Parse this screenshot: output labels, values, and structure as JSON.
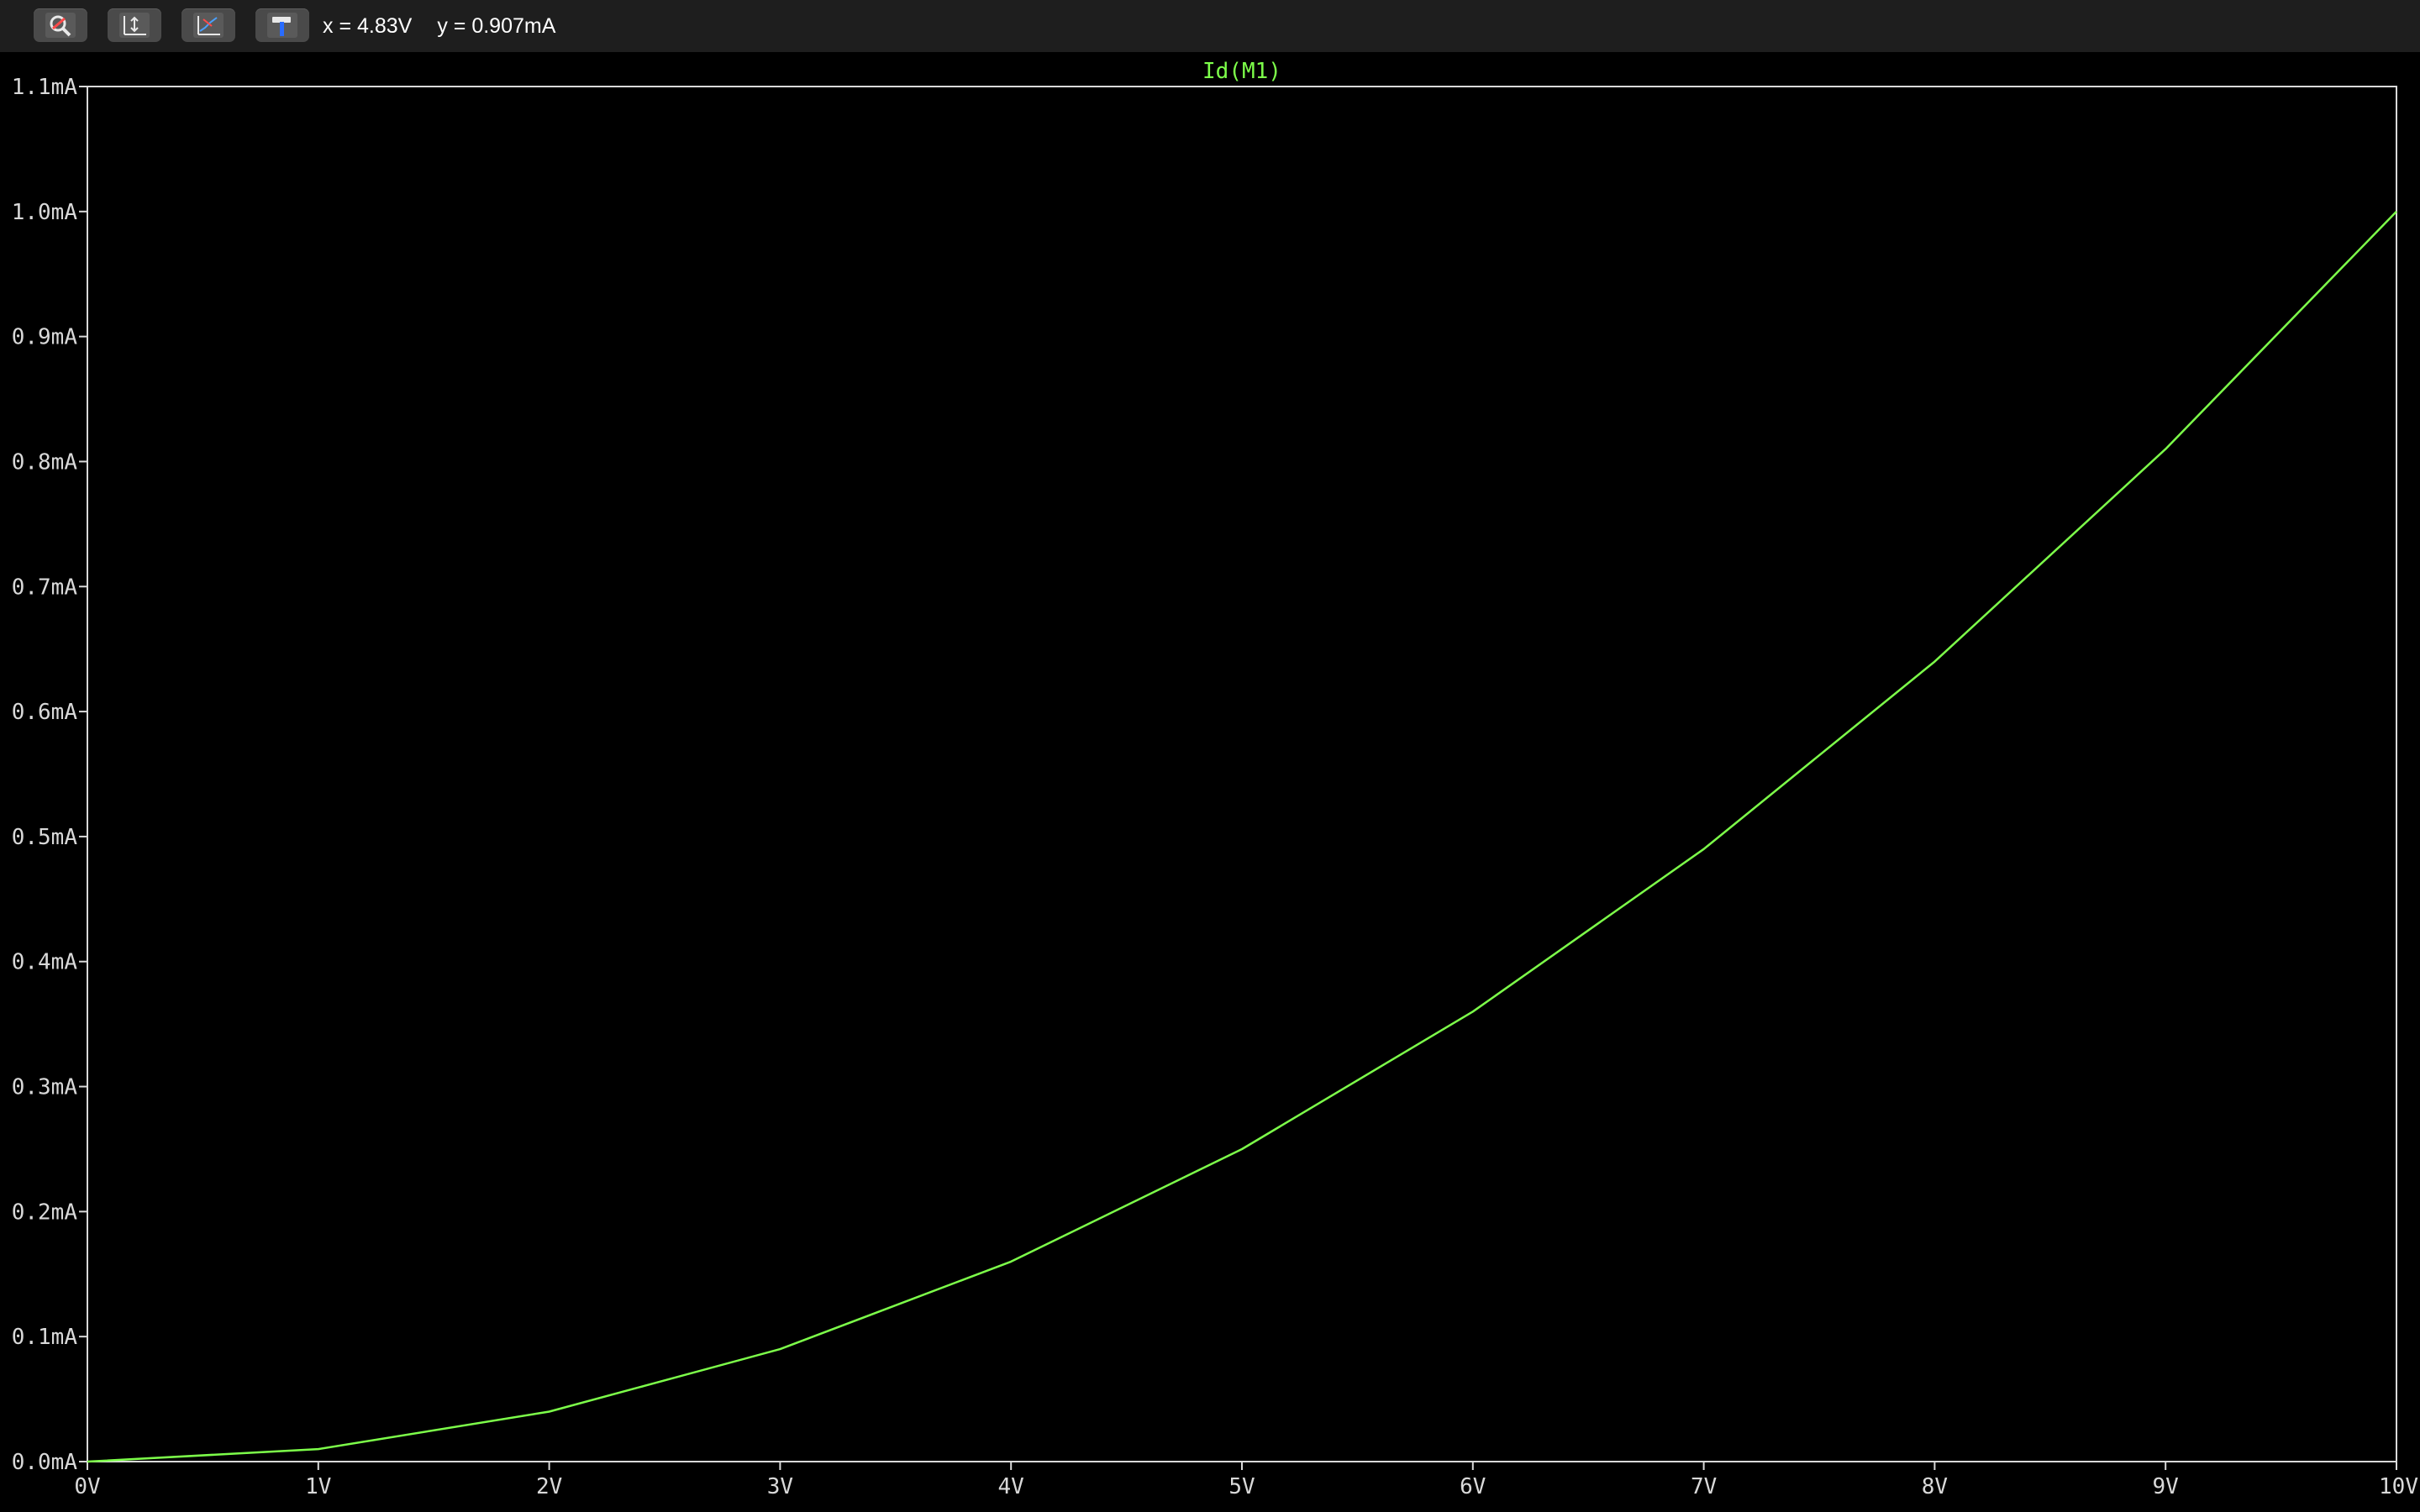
{
  "toolbar": {
    "buttons": [
      {
        "name": "zoom-button",
        "icon": "magnifier-zoom-icon"
      },
      {
        "name": "autorange-button",
        "icon": "axis-autorange-icon"
      },
      {
        "name": "cursor-button",
        "icon": "plot-cursor-icon"
      },
      {
        "name": "settings-button",
        "icon": "hammer-icon"
      }
    ],
    "cursor_x": "x = 4.83V",
    "cursor_y": "y = 0.907mA"
  },
  "colors": {
    "background": "#000000",
    "toolbar": "#1e1e1e",
    "trace": "#7dff4a",
    "axis": "#d9d9d9"
  },
  "chart_data": {
    "type": "line",
    "title": "Id(M1)",
    "xlabel": "",
    "ylabel": "",
    "xlim": [
      0,
      10
    ],
    "ylim": [
      0,
      1.1
    ],
    "x_ticks": [
      "0V",
      "1V",
      "2V",
      "3V",
      "4V",
      "5V",
      "6V",
      "7V",
      "8V",
      "9V",
      "10V"
    ],
    "y_ticks": [
      "0.0mA",
      "0.1mA",
      "0.2mA",
      "0.3mA",
      "0.4mA",
      "0.5mA",
      "0.6mA",
      "0.7mA",
      "0.8mA",
      "0.9mA",
      "1.0mA",
      "1.1mA"
    ],
    "grid": false,
    "series": [
      {
        "name": "Id(M1)",
        "x": [
          0,
          1,
          2,
          3,
          4,
          5,
          6,
          7,
          8,
          9,
          10
        ],
        "y": [
          0.0,
          0.01,
          0.04,
          0.09,
          0.16,
          0.25,
          0.36,
          0.49,
          0.64,
          0.81,
          1.0
        ]
      }
    ]
  }
}
